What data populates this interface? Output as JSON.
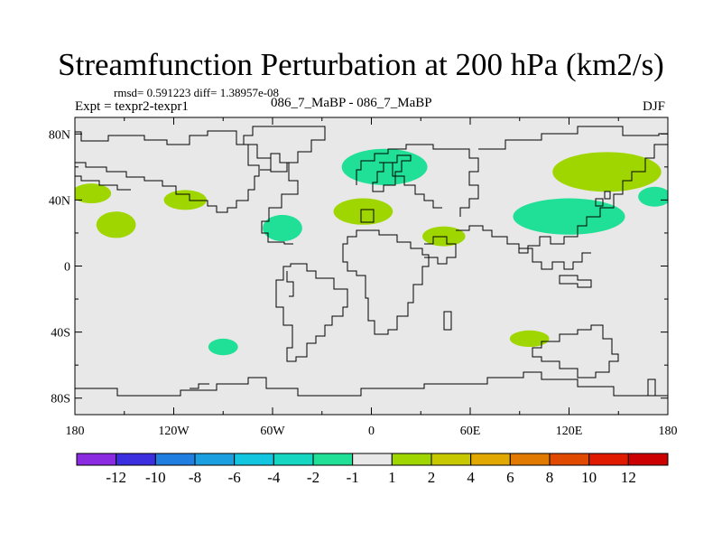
{
  "header": {
    "title": "Streamfunction Perturbation at 200 hPa (km2/s)",
    "stats": "rmsd= 0.591223 diff= 1.38957e-08",
    "experiment": "Expt = texpr2-texpr1",
    "case": "086_7_MaBP - 086_7_MaBP",
    "season": "DJF"
  },
  "chart_data": {
    "type": "heatmap",
    "title": "Streamfunction Perturbation at 200 hPa (km2/s)",
    "subtitle": "086_7_MaBP - 086_7_MaBP",
    "xlim": [
      -180,
      180
    ],
    "ylim": [
      -90,
      90
    ],
    "x_ticks": [
      {
        "value": -180,
        "label": "180"
      },
      {
        "value": -120,
        "label": "120W"
      },
      {
        "value": -60,
        "label": "60W"
      },
      {
        "value": 0,
        "label": "0"
      },
      {
        "value": 60,
        "label": "60E"
      },
      {
        "value": 120,
        "label": "120E"
      },
      {
        "value": 180,
        "label": "180"
      }
    ],
    "y_ticks": [
      {
        "value": 80,
        "label": "80N"
      },
      {
        "value": 40,
        "label": "40N"
      },
      {
        "value": 0,
        "label": "0"
      },
      {
        "value": -40,
        "label": "40S"
      },
      {
        "value": -80,
        "label": "80S"
      }
    ],
    "background_level_color": "#e8e8e8",
    "anomalies": [
      {
        "lon": -170,
        "lat": 44,
        "rx": 12,
        "ry": 6,
        "value": 2,
        "color": "#a0d600"
      },
      {
        "lon": -113,
        "lat": 40,
        "rx": 13,
        "ry": 6,
        "value": 2,
        "color": "#a0d600"
      },
      {
        "lon": -155,
        "lat": 25,
        "rx": 12,
        "ry": 8,
        "value": 2,
        "color": "#a0d600"
      },
      {
        "lon": -54,
        "lat": 23,
        "rx": 12,
        "ry": 8,
        "value": -2,
        "color": "#1fe096"
      },
      {
        "lon": 8,
        "lat": 60,
        "rx": 26,
        "ry": 11,
        "value": -2,
        "color": "#1fe096"
      },
      {
        "lon": -5,
        "lat": 33,
        "rx": 18,
        "ry": 8,
        "value": 2,
        "color": "#a0d600"
      },
      {
        "lon": 44,
        "lat": 18,
        "rx": 13,
        "ry": 6,
        "value": 2,
        "color": "#a0d600"
      },
      {
        "lon": 143,
        "lat": 57,
        "rx": 33,
        "ry": 12,
        "value": 2,
        "color": "#a0d600"
      },
      {
        "lon": 120,
        "lat": 30,
        "rx": 34,
        "ry": 11,
        "value": -2,
        "color": "#1fe096"
      },
      {
        "lon": 172,
        "lat": 42,
        "rx": 10,
        "ry": 6,
        "value": -2,
        "color": "#1fe096"
      },
      {
        "lon": -90,
        "lat": -49,
        "rx": 9,
        "ry": 5,
        "value": -2,
        "color": "#1fe096"
      },
      {
        "lon": 96,
        "lat": -44,
        "rx": 12,
        "ry": 5,
        "value": 2,
        "color": "#a0d600"
      }
    ],
    "colorbar": {
      "labels": [
        "-12",
        "-10",
        "-8",
        "-6",
        "-4",
        "-2",
        "-1",
        "1",
        "2",
        "4",
        "6",
        "8",
        "10",
        "12"
      ],
      "colors": [
        "#8a2be2",
        "#3b2fe0",
        "#1f7ee0",
        "#1a9fe0",
        "#12c6e0",
        "#15d6c0",
        "#1fe096",
        "#e8e8e8",
        "#a0d600",
        "#c8c800",
        "#e0a800",
        "#e07a00",
        "#e04a00",
        "#e01a00",
        "#cc0000"
      ]
    }
  }
}
